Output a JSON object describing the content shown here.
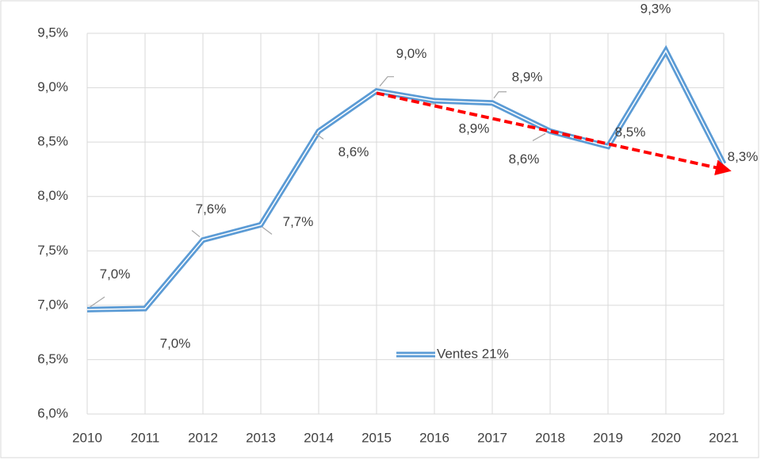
{
  "chart_data": {
    "type": "line",
    "categories": [
      "2010",
      "2011",
      "2012",
      "2013",
      "2014",
      "2015",
      "2016",
      "2017",
      "2018",
      "2019",
      "2020",
      "2021"
    ],
    "series": [
      {
        "name": "Ventes 21%",
        "color": "#5b9bd5",
        "values": [
          6.96,
          6.97,
          7.6,
          7.74,
          8.6,
          8.97,
          8.88,
          8.86,
          8.6,
          8.46,
          9.34,
          8.3
        ],
        "value_labels": [
          "7,0%",
          "7,0%",
          "7,6%",
          "7,7%",
          "8,6%",
          "9,0%",
          "8,9%",
          "8,9%",
          "8,6%",
          "8,5%",
          "9,3%",
          "8,3%"
        ]
      }
    ],
    "trend": {
      "color": "#ff0000",
      "x": [
        "2015",
        "2021"
      ],
      "values": [
        8.95,
        8.25
      ]
    },
    "ylim": [
      6.0,
      9.5
    ],
    "yticks": [
      {
        "value": 6.0,
        "label": "6,0%"
      },
      {
        "value": 6.5,
        "label": "6,5%"
      },
      {
        "value": 7.0,
        "label": "7,0%"
      },
      {
        "value": 7.5,
        "label": "7,5%"
      },
      {
        "value": 8.0,
        "label": "8,0%"
      },
      {
        "value": 8.5,
        "label": "8,5%"
      },
      {
        "value": 9.0,
        "label": "9,0%"
      },
      {
        "value": 9.5,
        "label": "9,5%"
      }
    ],
    "grid": true,
    "legend_position": "inside-bottom"
  }
}
